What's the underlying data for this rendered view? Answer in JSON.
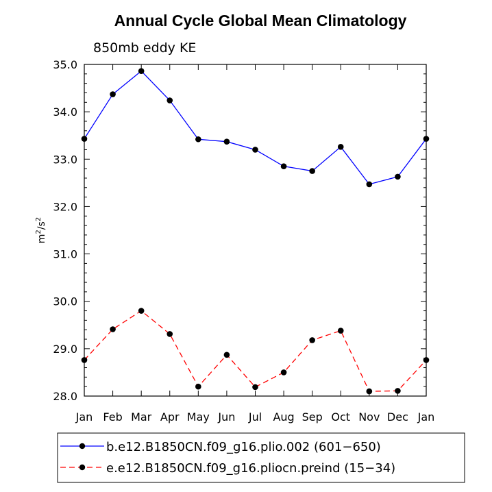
{
  "chart_data": {
    "type": "line",
    "title": "Annual Cycle Global Mean Climatology",
    "subtitle": "850mb eddy KE",
    "ylabel_base": "m",
    "ylabel_exp": "2",
    "ylabel_sep": "/s",
    "xlabel": "",
    "categories": [
      "Jan",
      "Feb",
      "Mar",
      "Apr",
      "May",
      "Jun",
      "Jul",
      "Aug",
      "Sep",
      "Oct",
      "Nov",
      "Dec",
      "Jan"
    ],
    "ylim": [
      28.0,
      35.0
    ],
    "yticks": [
      "28.0",
      "29.0",
      "30.0",
      "31.0",
      "32.0",
      "33.0",
      "34.0",
      "35.0"
    ],
    "series": [
      {
        "name": "b.e12.B1850CN.f09_g16.plio.002 (601−650)",
        "color": "#0000ff",
        "dash": "solid",
        "values": [
          33.43,
          34.37,
          34.86,
          34.24,
          33.42,
          33.37,
          33.2,
          32.85,
          32.75,
          33.26,
          32.47,
          32.63,
          33.43
        ]
      },
      {
        "name": "e.e12.B1850CN.f09_g16.pliocn.preind (15−34)",
        "color": "#ff0000",
        "dash": "dashed",
        "values": [
          28.76,
          29.41,
          29.8,
          29.31,
          28.2,
          28.87,
          28.19,
          28.5,
          29.18,
          29.38,
          28.1,
          28.11,
          28.76
        ]
      }
    ]
  }
}
